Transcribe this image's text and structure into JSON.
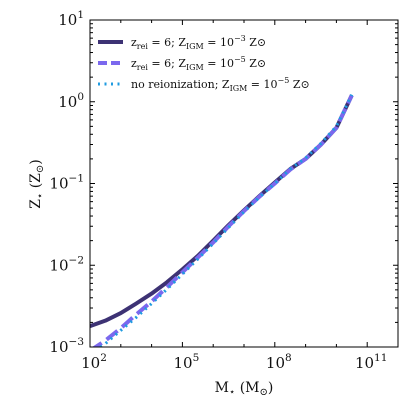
{
  "chart_data": {
    "type": "line",
    "xlabel": "M⋆ (M⊙)",
    "ylabel": "Z⋆ (Z⊙)",
    "xscale": "log",
    "yscale": "log",
    "xlim": [
      100,
      1000000000000
    ],
    "ylim": [
      0.001,
      10
    ],
    "x_ticks": [
      {
        "value": 100,
        "base": "10",
        "exp": "2"
      },
      {
        "value": 100000,
        "base": "10",
        "exp": "5"
      },
      {
        "value": 100000000,
        "base": "10",
        "exp": "8"
      },
      {
        "value": 100000000000,
        "base": "10",
        "exp": "11"
      }
    ],
    "y_ticks": [
      {
        "value": 0.001,
        "base": "10",
        "exp": "−3"
      },
      {
        "value": 0.01,
        "base": "10",
        "exp": "−2"
      },
      {
        "value": 0.1,
        "base": "10",
        "exp": "−1"
      },
      {
        "value": 1,
        "base": "10",
        "exp": "0"
      },
      {
        "value": 10,
        "base": "10",
        "exp": "1"
      }
    ],
    "grid": false,
    "legend_position": "top-left",
    "series": [
      {
        "name": "z_rei = 6; Z_IGM = 10^-3 Z⊙",
        "legend": {
          "pre": "z",
          "sub1": "rei",
          "mid": " = 6; Z",
          "sub2": "IGM",
          "mid2": " = 10",
          "sup": "−3",
          "post": " Z⊙"
        },
        "color": "#3d3274",
        "style": "solid",
        "x": [
          100,
          316,
          1000,
          3162,
          10000,
          31623,
          100000,
          316228,
          1000000,
          3162278,
          10000000,
          31622777,
          100000000,
          316227766,
          1000000000,
          3162277660,
          10000000000,
          31622776602
        ],
        "y": [
          0.0018,
          0.0021,
          0.0026,
          0.0034,
          0.0045,
          0.0062,
          0.0089,
          0.013,
          0.02,
          0.031,
          0.047,
          0.07,
          0.103,
          0.15,
          0.2,
          0.3,
          0.48,
          1.2
        ]
      },
      {
        "name": "z_rei = 6; Z_IGM = 10^-5 Z⊙",
        "legend": {
          "pre": "z",
          "sub1": "rei",
          "mid": " = 6; Z",
          "sub2": "IGM",
          "mid2": " = 10",
          "sup": "−5",
          "post": " Z⊙"
        },
        "color": "#7b68ee",
        "style": "dashed",
        "x": [
          100,
          316,
          1000,
          3162,
          10000,
          31623,
          100000,
          316228,
          1000000,
          3162278,
          10000000,
          31622777,
          100000000,
          316227766,
          1000000000,
          3162277660,
          10000000000,
          31622776602
        ],
        "y": [
          0.0009,
          0.0012,
          0.0017,
          0.0025,
          0.0036,
          0.0054,
          0.0082,
          0.0124,
          0.019,
          0.03,
          0.046,
          0.069,
          0.1,
          0.148,
          0.2,
          0.3,
          0.48,
          1.2
        ]
      },
      {
        "name": "no reionization; Z_IGM = 10^-5 Z⊙",
        "legend": {
          "pre": "no reionization; Z",
          "sub1": "",
          "mid": "",
          "sub2": "IGM",
          "mid2": " = 10",
          "sup": "−5",
          "post": " Z⊙"
        },
        "color": "#1f9be0",
        "style": "dotted",
        "x": [
          100,
          316,
          1000,
          3162,
          10000,
          31623,
          100000,
          316228,
          1000000,
          3162278,
          10000000,
          31622777,
          100000000,
          316227766,
          1000000000,
          3162277660,
          10000000000,
          31622776602
        ],
        "y": [
          0.0008,
          0.0011,
          0.0016,
          0.0023,
          0.0034,
          0.0051,
          0.0078,
          0.0119,
          0.0185,
          0.029,
          0.045,
          0.068,
          0.1,
          0.15,
          0.205,
          0.31,
          0.5,
          1.22
        ]
      }
    ]
  }
}
